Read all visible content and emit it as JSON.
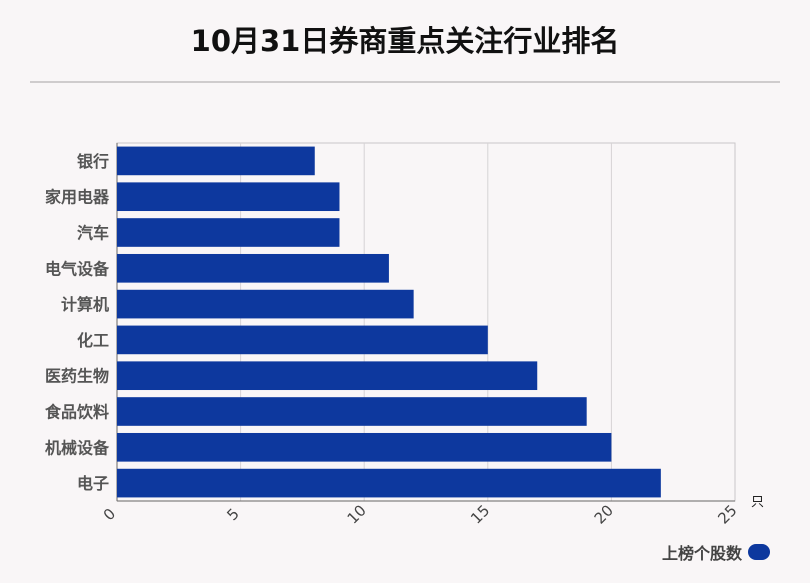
{
  "chart_data": {
    "type": "bar",
    "orientation": "horizontal",
    "title": "10月31日券商重点关注行业排名",
    "categories": [
      "银行",
      "家用电器",
      "汽车",
      "电气设备",
      "计算机",
      "化工",
      "医药生物",
      "食品饮料",
      "机械设备",
      "电子"
    ],
    "series": [
      {
        "name": "上榜个股数",
        "values": [
          8,
          9,
          9,
          11,
          12,
          15,
          17,
          19,
          20,
          22
        ]
      }
    ],
    "xlim": [
      0,
      25
    ],
    "xticks": [
      "0",
      "5",
      "10",
      "15",
      "20",
      "25"
    ],
    "xunit": "只",
    "grid": true,
    "legend_position": "bottom-right",
    "bar_color": "#0d389e"
  }
}
